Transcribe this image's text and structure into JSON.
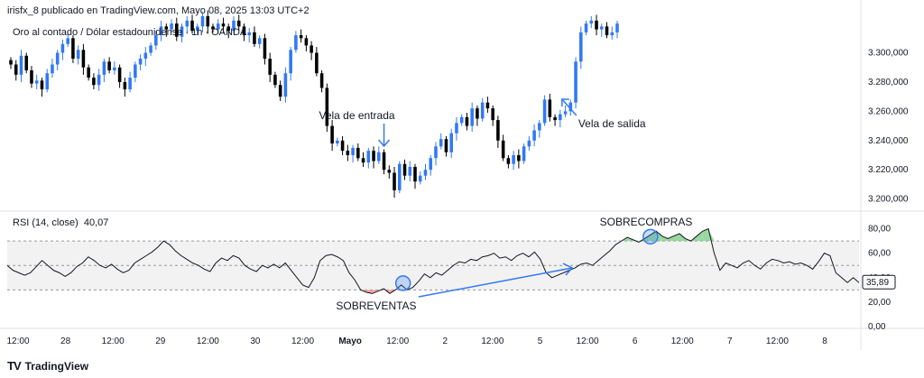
{
  "header": {
    "text": "irisfx_8 publicado en TradingView.com, Mayo 08, 2025 13:03 UTC+2"
  },
  "symbol": {
    "text": "Oro al contado / Dólar estadounidense · 1h · OANDA"
  },
  "rsi": {
    "label": "RSI (14, close)",
    "value": "40,07",
    "current_badge": "35,89"
  },
  "footer": {
    "logo_icon": "TV",
    "brand": "TradingView"
  },
  "colors": {
    "up": "#3179f5",
    "down": "#000000",
    "rsi_line": "#131722",
    "band_fill": "#f2f2f2",
    "overbought_fill": "#7fcf8a",
    "oversold_fill": "#f28b8b",
    "annotation": "#3179f5"
  },
  "chart_data": [
    {
      "type": "candlestick",
      "price_axis_ticks": [
        "3.300,000",
        "3.280,000",
        "3.260,000",
        "3.240,000",
        "3.220,000",
        "3.200,000"
      ],
      "price_tick_values": [
        3300,
        3280,
        3260,
        3240,
        3220,
        3200
      ],
      "ylim": [
        3193,
        3325
      ],
      "x_ticks": [
        "12:00",
        "28",
        "12:00",
        "29",
        "12:00",
        "30",
        "12:00",
        "Mayo",
        "12:00",
        "2",
        "12:00",
        "5",
        "12:00",
        "6",
        "12:00",
        "7",
        "12:00",
        "8"
      ],
      "series_closes": [
        3292,
        3285,
        3298,
        3288,
        3279,
        3281,
        3275,
        3286,
        3292,
        3300,
        3306,
        3310,
        3296,
        3302,
        3290,
        3283,
        3278,
        3285,
        3294,
        3288,
        3290,
        3280,
        3275,
        3283,
        3292,
        3296,
        3300,
        3305,
        3312,
        3318,
        3316,
        3320,
        3311,
        3318,
        3322,
        3315,
        3318,
        3325,
        3318,
        3316,
        3320,
        3318,
        3315,
        3322,
        3318,
        3312,
        3314,
        3306,
        3310,
        3296,
        3285,
        3278,
        3270,
        3286,
        3302,
        3312,
        3310,
        3305,
        3300,
        3286,
        3276,
        3250,
        3238,
        3240,
        3233,
        3230,
        3235,
        3228,
        3225,
        3233,
        3226,
        3232,
        3220,
        3218,
        3206,
        3224,
        3216,
        3222,
        3212,
        3216,
        3220,
        3228,
        3236,
        3241,
        3232,
        3245,
        3252,
        3256,
        3250,
        3262,
        3255,
        3266,
        3262,
        3254,
        3240,
        3228,
        3224,
        3230,
        3226,
        3236,
        3240,
        3247,
        3252,
        3268,
        3256,
        3254,
        3258,
        3260,
        3266,
        3294,
        3314,
        3320,
        3322,
        3316,
        3318,
        3312,
        3314,
        3320
      ],
      "annotations": [
        {
          "text": "Vela de entrada"
        },
        {
          "text": "Vela de salida"
        }
      ]
    },
    {
      "type": "line",
      "series": [
        {
          "values": [
            50,
            46,
            44,
            42,
            44,
            49,
            54,
            50,
            46,
            44,
            41,
            44,
            49,
            52,
            57,
            54,
            50,
            48,
            51,
            47,
            44,
            46,
            52,
            55,
            58,
            61,
            65,
            70,
            67,
            62,
            58,
            55,
            52,
            50,
            47,
            45,
            52,
            56,
            54,
            58,
            56,
            50,
            47,
            45,
            50,
            48,
            51,
            48,
            52,
            46,
            40,
            34,
            32,
            40,
            54,
            58,
            59,
            57,
            54,
            44,
            38,
            30,
            28,
            27,
            29,
            31,
            27,
            30,
            34,
            30,
            32,
            37,
            43,
            40,
            44,
            42,
            46,
            50,
            53,
            52,
            55,
            54,
            57,
            58,
            60,
            56,
            57,
            54,
            58,
            60,
            57,
            61,
            55,
            44,
            40,
            42,
            44,
            46,
            48,
            51,
            52,
            50,
            54,
            58,
            62,
            67,
            70,
            73,
            71,
            69,
            72,
            75,
            78,
            74,
            72,
            74,
            76,
            72,
            70,
            74,
            78,
            80,
            60,
            46,
            52,
            50,
            48,
            52,
            54,
            50,
            47,
            52,
            55,
            54,
            52,
            53,
            51,
            52,
            50,
            47,
            53,
            60,
            58,
            44,
            40,
            36,
            40,
            36
          ]
        }
      ],
      "ylabel": "",
      "ylim": [
        0,
        90
      ],
      "axis_ticks": [
        "80,00",
        "60,00",
        "40,00",
        "20,00",
        "0,00"
      ],
      "axis_tick_values": [
        80,
        60,
        40,
        20,
        0
      ],
      "overbought": 70,
      "middle": 50,
      "oversold": 30,
      "annotations": [
        {
          "text": "SOBRECOMPRAS"
        },
        {
          "text": "SOBREVENTAS"
        }
      ]
    }
  ]
}
